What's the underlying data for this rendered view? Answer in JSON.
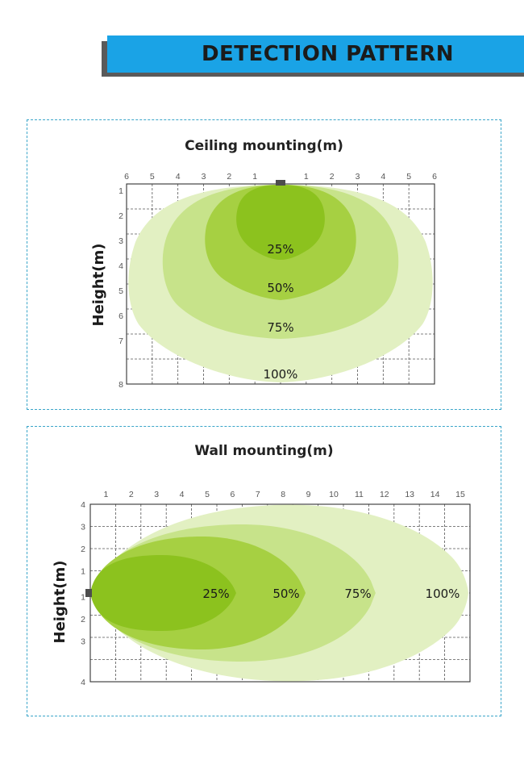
{
  "header": {
    "title": "DETECTION PATTERN"
  },
  "ceiling": {
    "title": "Ceiling mounting(m)",
    "ylabel": "Height(m)",
    "x_ticks": [
      "6",
      "5",
      "4",
      "3",
      "2",
      "1",
      "",
      "1",
      "2",
      "3",
      "4",
      "5",
      "6"
    ],
    "y_ticks": [
      "1",
      "2",
      "3",
      "4",
      "5",
      "6",
      "7",
      "8"
    ],
    "zones": [
      "25%",
      "50%",
      "75%",
      "100%"
    ],
    "colors": {
      "zone25": "#8cc21e",
      "zone50": "#a6d042",
      "zone75": "#c7e38a",
      "zone100": "#e2f0c2",
      "sensor": "#4d4d4d"
    }
  },
  "wall": {
    "title": "Wall mounting(m)",
    "ylabel": "Height(m)",
    "x_ticks": [
      "1",
      "2",
      "3",
      "4",
      "5",
      "6",
      "7",
      "8",
      "9",
      "10",
      "11",
      "12",
      "13",
      "14",
      "15"
    ],
    "y_ticks_top": [
      "4",
      "3",
      "2",
      "1"
    ],
    "y_ticks_bottom": [
      "1",
      "2",
      "3",
      "4"
    ],
    "zones": [
      "25%",
      "50%",
      "75%",
      "100%"
    ],
    "colors": {
      "zone25": "#8cc21e",
      "zone50": "#a6d042",
      "zone75": "#c7e38a",
      "zone100": "#e2f0c2",
      "sensor": "#4d4d4d"
    }
  }
}
